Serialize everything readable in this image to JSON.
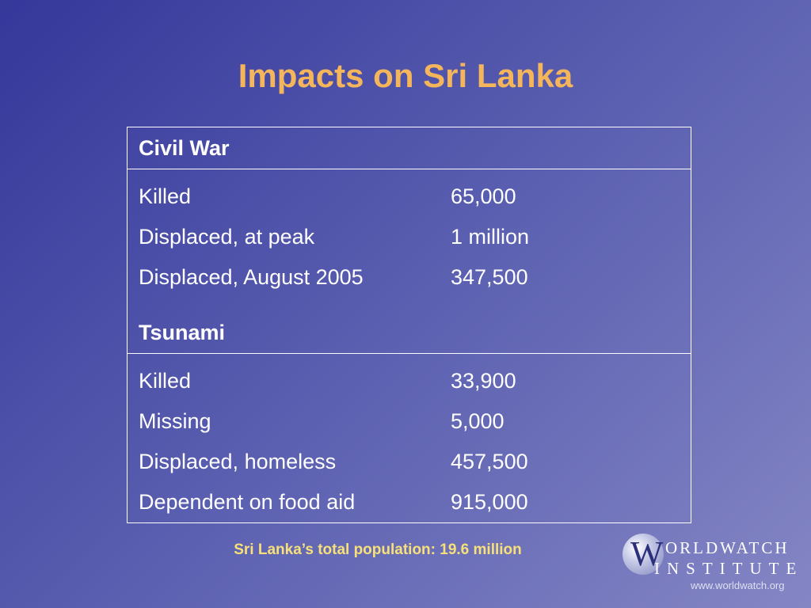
{
  "slide": {
    "title": "Impacts on Sri Lanka",
    "footnote": "Sri Lanka’s total population: 19.6 million"
  },
  "table": {
    "civil_war": {
      "heading": "Civil War",
      "rows": [
        {
          "label": "Killed",
          "value": "65,000"
        },
        {
          "label": "Displaced, at peak",
          "value": "1 million"
        },
        {
          "label": "Displaced, August 2005",
          "value": "347,500"
        }
      ]
    },
    "tsunami": {
      "heading": "Tsunami",
      "rows": [
        {
          "label": "Killed",
          "value": "33,900"
        },
        {
          "label": "Missing",
          "value": "5,000"
        },
        {
          "label": "Displaced, homeless",
          "value": "457,500"
        },
        {
          "label": "Dependent on food aid",
          "value": "915,000"
        }
      ]
    }
  },
  "logo": {
    "initial": "W",
    "line1": "ORLDWATCH",
    "line2": "INSTITUTE",
    "url": "www.worldwatch.org"
  },
  "colors": {
    "title": "#f4b55b",
    "footnote": "#f7e07a",
    "table_text": "#ffffff"
  }
}
